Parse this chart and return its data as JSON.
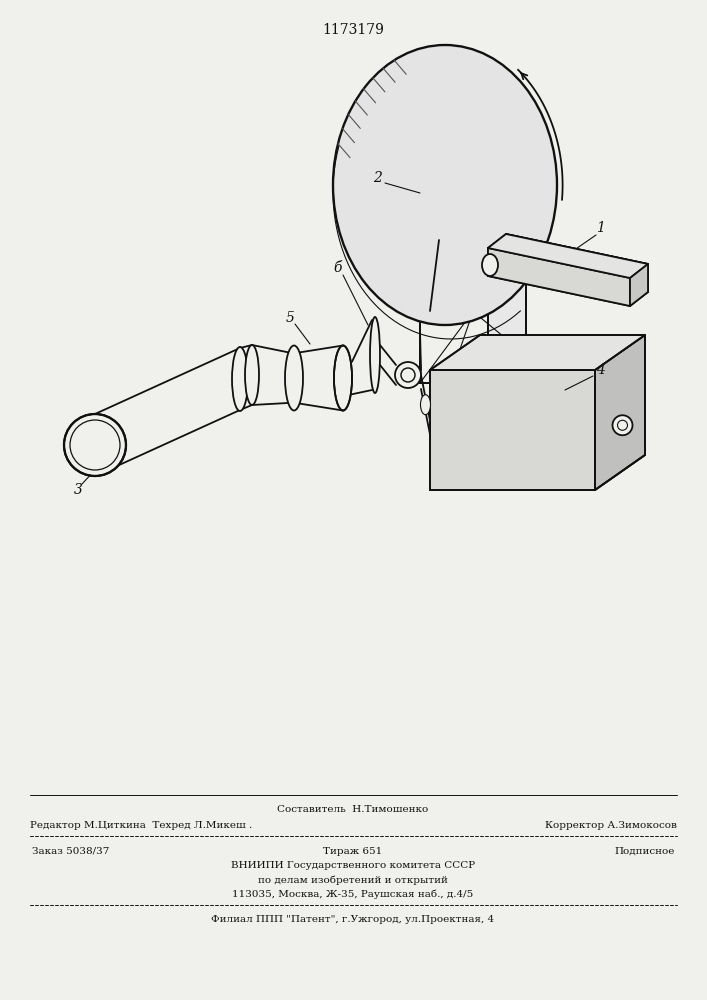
{
  "title": "1173179",
  "bg_color": "#f0f0ed",
  "line_color": "#111111",
  "footer": {
    "line1_center": "Составитель  Н.Тимошенко",
    "line2_left": "Редактор М.Циткина  Техред Л.Микеш .",
    "line2_right": "Корректор А.Зимокосов",
    "line3_left": "Заказ 5038/37",
    "line3_center": "Тираж 651",
    "line3_right": "Подписное",
    "line4": "ВНИИПИ Государственного комитета СССР",
    "line5": "по делам изобретений и открытий",
    "line6": "113035, Москва, Ж-35, Раушская наб., д.4/5",
    "line7": "Филиал ППП \"Патент\", г.Ужгород, ул.Проектная, 4"
  }
}
